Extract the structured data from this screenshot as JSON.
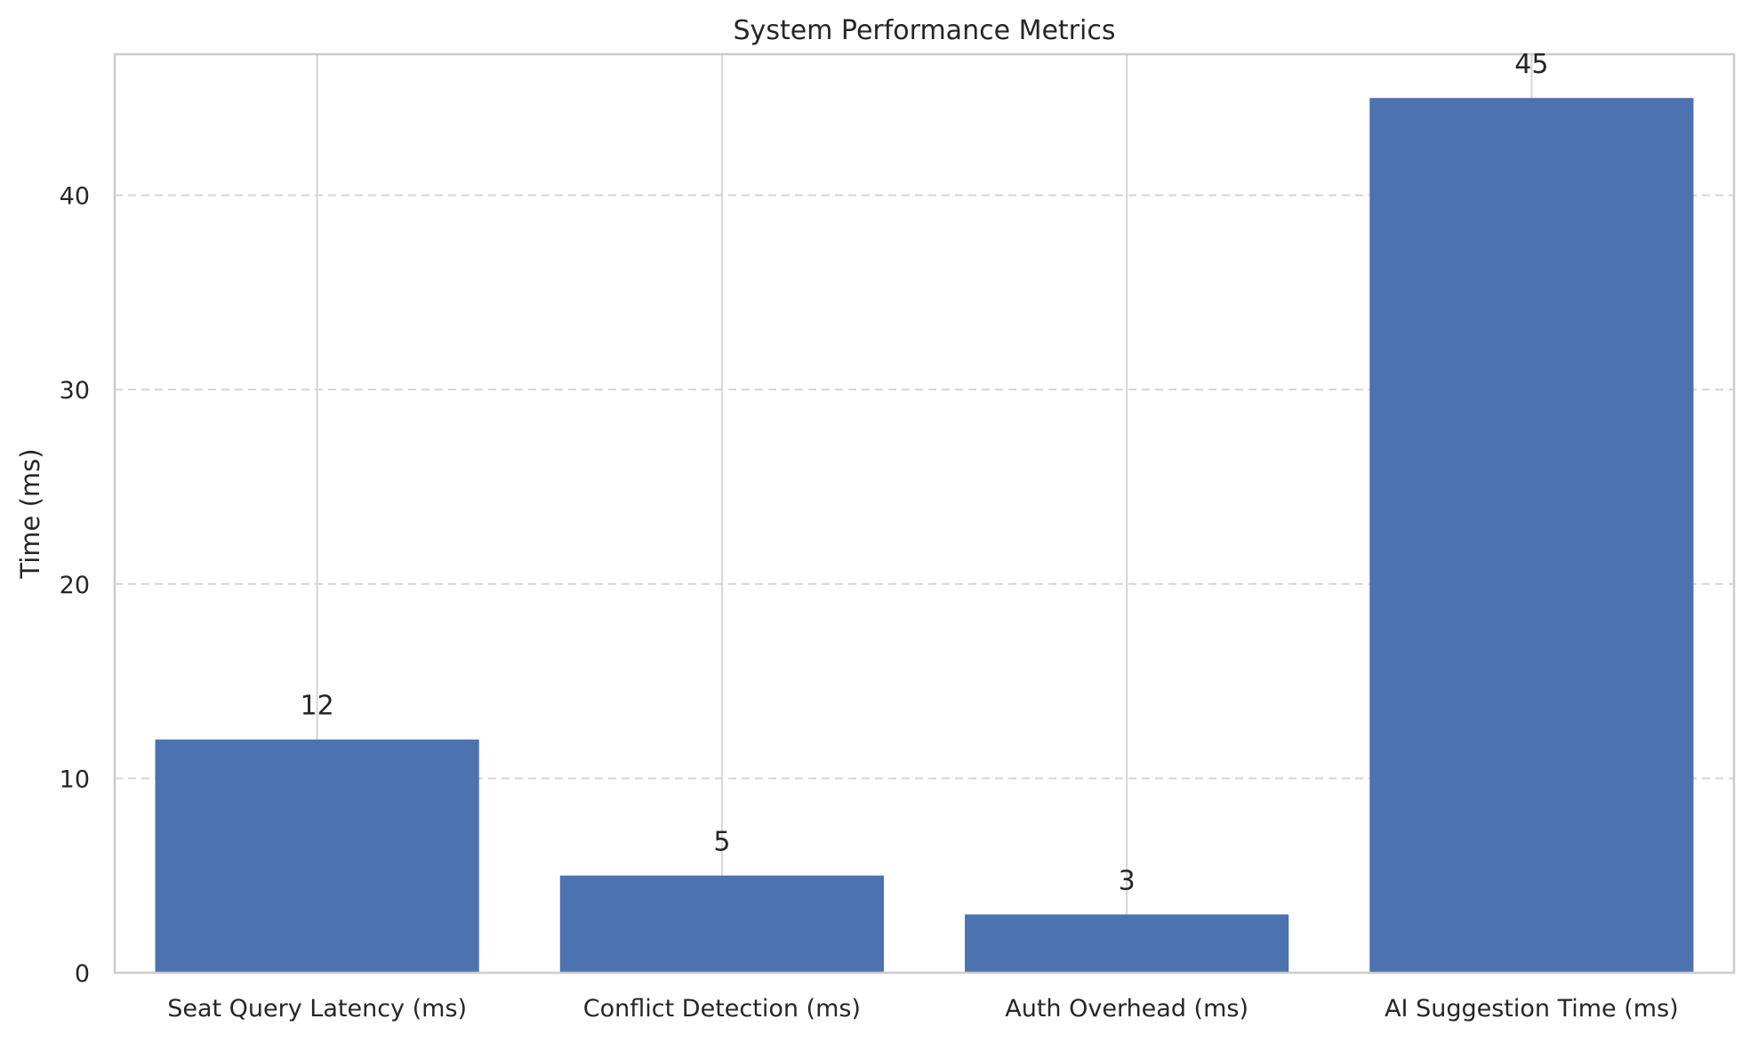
{
  "chart_data": {
    "type": "bar",
    "title": "System Performance Metrics",
    "xlabel": "",
    "ylabel": "Time (ms)",
    "categories": [
      "Seat Query Latency (ms)",
      "Conflict Detection (ms)",
      "Auth Overhead (ms)",
      "AI Suggestion Time (ms)"
    ],
    "values": [
      12,
      5,
      3,
      45
    ],
    "ylim": [
      0,
      47.25
    ],
    "yticks": [
      0,
      10,
      20,
      30,
      40
    ],
    "grid": true,
    "bar_color": "#4c72b0",
    "data_labels": [
      "12",
      "5",
      "3",
      "45"
    ]
  }
}
